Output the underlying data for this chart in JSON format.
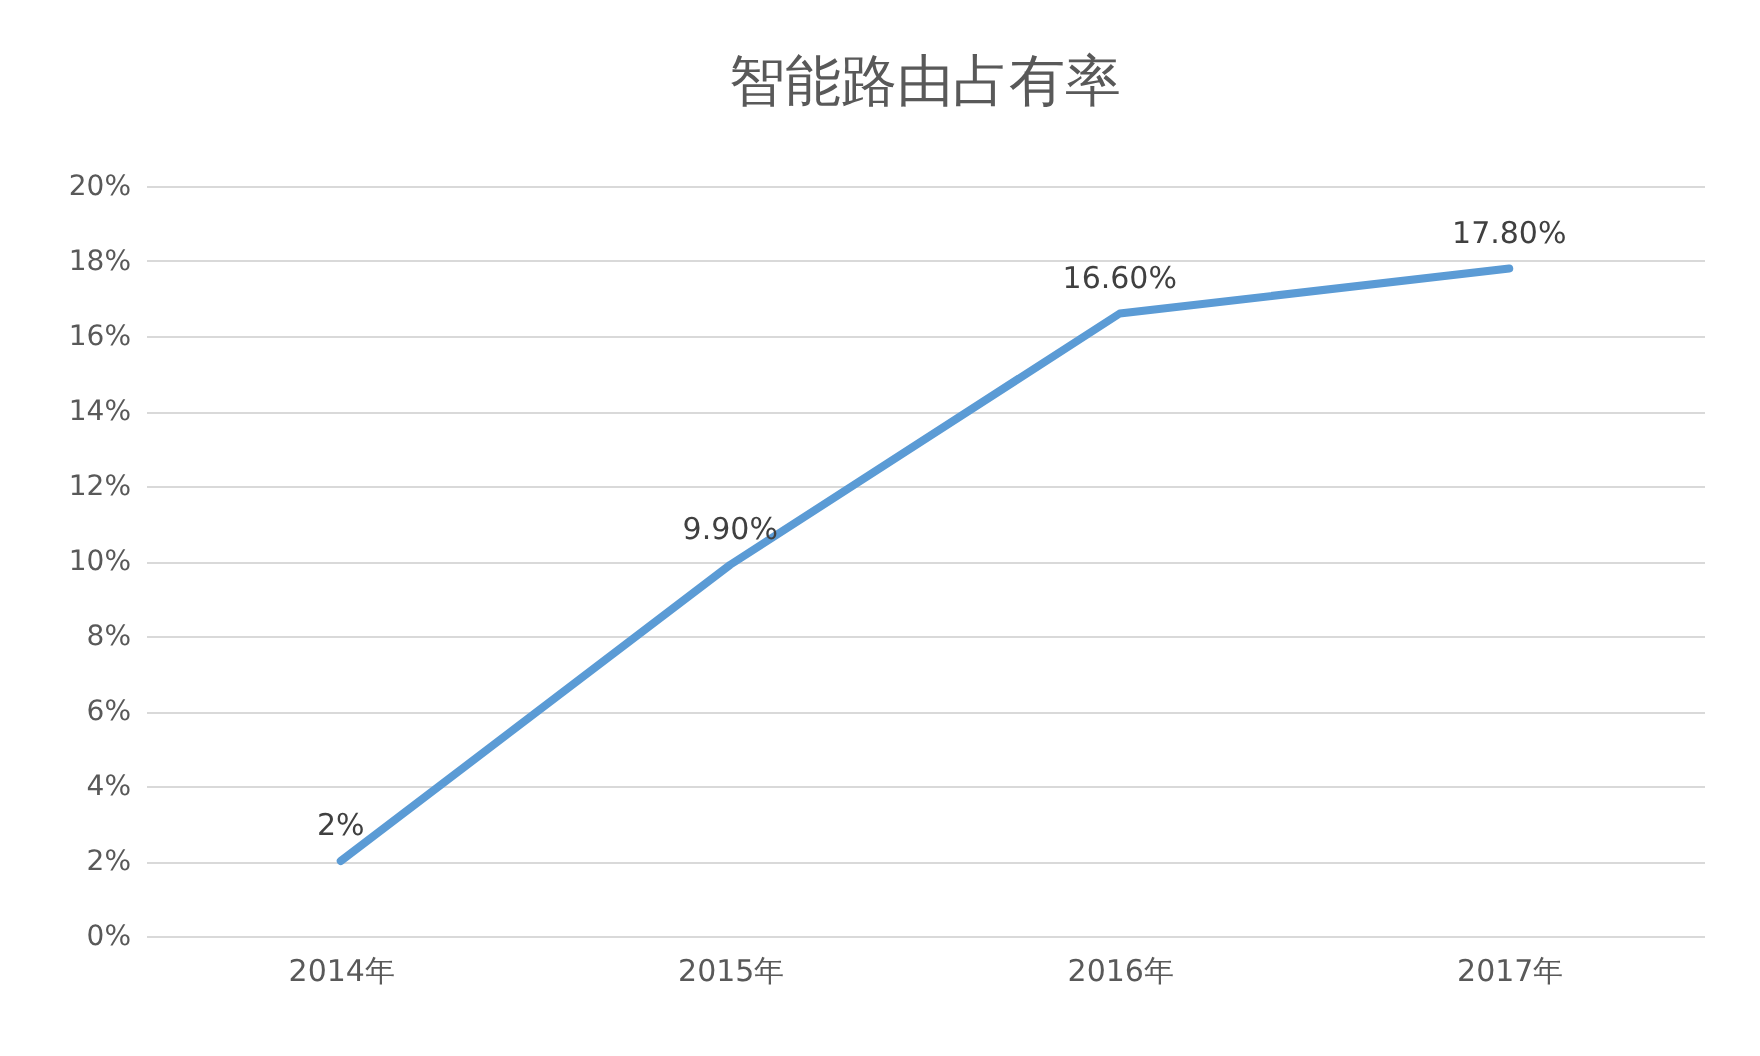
{
  "chart_data": {
    "type": "line",
    "title": "智能路由占有率",
    "categories": [
      "2014年",
      "2015年",
      "2016年",
      "2017年"
    ],
    "series": [
      {
        "color": "#5b9bd5",
        "values": [
          2,
          9.9,
          16.6,
          17.8
        ],
        "value_labels": [
          "2%",
          "9.90%",
          "16.60%",
          "17.80%"
        ]
      }
    ],
    "ylim": [
      0,
      20
    ],
    "yticks": [
      {
        "value": 0,
        "label": "0%"
      },
      {
        "value": 2,
        "label": "2%"
      },
      {
        "value": 4,
        "label": "4%"
      },
      {
        "value": 6,
        "label": "6%"
      },
      {
        "value": 8,
        "label": "8%"
      },
      {
        "value": 10,
        "label": "10%"
      },
      {
        "value": 12,
        "label": "12%"
      },
      {
        "value": 14,
        "label": "14%"
      },
      {
        "value": 16,
        "label": "16%"
      },
      {
        "value": 18,
        "label": "18%"
      },
      {
        "value": 20,
        "label": "20%"
      }
    ],
    "grid": "y",
    "legend": false,
    "marker": "none",
    "line_style": "solid"
  }
}
